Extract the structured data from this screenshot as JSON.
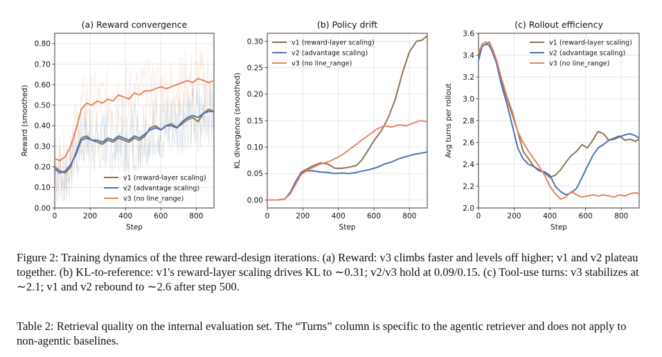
{
  "figure": {
    "caption_prefix": "Figure 2:",
    "caption_body": "Training dynamics of the three reward-design iterations. (a) Reward: v3 climbs faster and levels off higher; v1 and v2 plateau together. (b) KL-to-reference: v1's reward-layer scaling drives KL to ∼0.31; v2/v3 hold at 0.09/0.15. (c) Tool-use turns: v3 stabilizes at ∼2.1; v1 and v2 rebound to ∼2.6 after step 500."
  },
  "table_caption": {
    "prefix": "Table 2:",
    "body": "Retrieval quality on the internal evaluation set. The “Turns” column is specific to the agentic retriever and does not apply to non-agentic baselines."
  },
  "colors": {
    "v1": "#8b7355",
    "v2": "#4a72b8",
    "v3": "#e8835a"
  },
  "chart_data": [
    {
      "type": "line",
      "title": "(a) Reward convergence",
      "xlabel": "Step",
      "ylabel": "Reward (smoothed)",
      "xlim": [
        0,
        900
      ],
      "ylim": [
        0.0,
        0.85
      ],
      "xticks": [
        0,
        200,
        400,
        600,
        800
      ],
      "yticks": [
        0.0,
        0.1,
        0.2,
        0.3,
        0.4,
        0.5,
        0.6,
        0.7,
        0.8
      ],
      "ytick_labels": [
        "0.00",
        "0.10",
        "0.20",
        "0.30",
        "0.40",
        "0.50",
        "0.60",
        "0.70",
        "0.80"
      ],
      "grid": true,
      "legend": "bottom-right",
      "series": [
        {
          "name": "v1 (reward-layer scaling)",
          "key": "v1",
          "x": [
            0,
            30,
            60,
            90,
            120,
            150,
            180,
            210,
            240,
            270,
            300,
            330,
            360,
            390,
            420,
            450,
            480,
            510,
            540,
            570,
            600,
            630,
            660,
            690,
            720,
            750,
            780,
            810,
            840,
            870,
            900
          ],
          "y": [
            0.2,
            0.18,
            0.17,
            0.2,
            0.27,
            0.34,
            0.35,
            0.33,
            0.32,
            0.31,
            0.33,
            0.32,
            0.34,
            0.33,
            0.32,
            0.34,
            0.33,
            0.35,
            0.39,
            0.4,
            0.38,
            0.4,
            0.41,
            0.39,
            0.41,
            0.43,
            0.44,
            0.42,
            0.46,
            0.48,
            0.47
          ]
        },
        {
          "name": "v2 (advantage scaling)",
          "key": "v2",
          "x": [
            0,
            30,
            60,
            90,
            120,
            150,
            180,
            210,
            240,
            270,
            300,
            330,
            360,
            390,
            420,
            450,
            480,
            510,
            540,
            570,
            600,
            630,
            660,
            690,
            720,
            750,
            780,
            810,
            840,
            870,
            900
          ],
          "y": [
            0.19,
            0.17,
            0.18,
            0.21,
            0.26,
            0.33,
            0.34,
            0.33,
            0.33,
            0.32,
            0.34,
            0.33,
            0.35,
            0.34,
            0.33,
            0.35,
            0.34,
            0.36,
            0.38,
            0.39,
            0.38,
            0.4,
            0.4,
            0.39,
            0.42,
            0.44,
            0.45,
            0.44,
            0.46,
            0.47,
            0.47
          ]
        },
        {
          "name": "v3 (no line_range)",
          "key": "v3",
          "x": [
            0,
            30,
            60,
            90,
            120,
            150,
            180,
            210,
            240,
            270,
            300,
            330,
            360,
            390,
            420,
            450,
            480,
            510,
            540,
            570,
            600,
            630,
            660,
            690,
            720,
            750,
            780,
            810,
            840,
            870,
            900
          ],
          "y": [
            0.24,
            0.23,
            0.25,
            0.3,
            0.38,
            0.48,
            0.51,
            0.5,
            0.52,
            0.51,
            0.53,
            0.52,
            0.55,
            0.54,
            0.53,
            0.56,
            0.55,
            0.57,
            0.57,
            0.58,
            0.59,
            0.58,
            0.59,
            0.6,
            0.61,
            0.62,
            0.61,
            0.63,
            0.62,
            0.61,
            0.62
          ]
        }
      ]
    },
    {
      "type": "line",
      "title": "(b) Policy drift",
      "xlabel": "Step",
      "ylabel": "KL divergence (smoothed)",
      "xlim": [
        0,
        900
      ],
      "ylim": [
        -0.015,
        0.315
      ],
      "xticks": [
        0,
        200,
        400,
        600,
        800
      ],
      "yticks": [
        0.0,
        0.05,
        0.1,
        0.15,
        0.2,
        0.25,
        0.3
      ],
      "ytick_labels": [
        "0.00",
        "0.05",
        "0.10",
        "0.15",
        "0.20",
        "0.25",
        "0.30"
      ],
      "grid": true,
      "legend": "top-left",
      "series": [
        {
          "name": "v1 (reward-layer scaling)",
          "key": "v1",
          "x": [
            0,
            60,
            100,
            130,
            160,
            190,
            220,
            260,
            300,
            340,
            380,
            420,
            460,
            500,
            530,
            560,
            600,
            640,
            680,
            720,
            760,
            800,
            840,
            870,
            900
          ],
          "y": [
            0.0,
            0.0,
            0.002,
            0.015,
            0.035,
            0.052,
            0.058,
            0.065,
            0.07,
            0.068,
            0.06,
            0.06,
            0.062,
            0.065,
            0.075,
            0.09,
            0.112,
            0.13,
            0.155,
            0.19,
            0.24,
            0.28,
            0.3,
            0.302,
            0.31
          ]
        },
        {
          "name": "v2 (advantage scaling)",
          "key": "v2",
          "x": [
            0,
            60,
            100,
            130,
            160,
            190,
            220,
            260,
            300,
            340,
            380,
            420,
            460,
            500,
            540,
            580,
            620,
            660,
            700,
            740,
            780,
            820,
            860,
            900
          ],
          "y": [
            0.0,
            0.0,
            0.002,
            0.015,
            0.035,
            0.05,
            0.055,
            0.055,
            0.053,
            0.052,
            0.05,
            0.051,
            0.05,
            0.052,
            0.055,
            0.058,
            0.062,
            0.068,
            0.072,
            0.078,
            0.082,
            0.086,
            0.088,
            0.091
          ]
        },
        {
          "name": "v3 (no line_range)",
          "key": "v3",
          "x": [
            0,
            60,
            100,
            130,
            160,
            190,
            220,
            260,
            300,
            340,
            380,
            420,
            460,
            500,
            540,
            580,
            620,
            660,
            700,
            740,
            780,
            820,
            860,
            900
          ],
          "y": [
            0.0,
            0.0,
            0.002,
            0.012,
            0.03,
            0.048,
            0.055,
            0.062,
            0.068,
            0.072,
            0.078,
            0.085,
            0.095,
            0.105,
            0.115,
            0.125,
            0.135,
            0.14,
            0.138,
            0.142,
            0.14,
            0.145,
            0.15,
            0.148
          ]
        }
      ]
    },
    {
      "type": "line",
      "title": "(c) Rollout efficiency",
      "xlabel": "Step",
      "ylabel": "Avg turns per rollout",
      "xlim": [
        0,
        900
      ],
      "ylim": [
        2.0,
        3.6
      ],
      "xticks": [
        0,
        200,
        400,
        600,
        800
      ],
      "yticks": [
        2.0,
        2.2,
        2.4,
        2.6,
        2.8,
        3.0,
        3.2,
        3.4,
        3.6
      ],
      "ytick_labels": [
        "2.0",
        "2.2",
        "2.4",
        "2.6",
        "2.8",
        "3.0",
        "3.2",
        "3.4",
        "3.6"
      ],
      "grid": true,
      "legend": "top-right",
      "series": [
        {
          "name": "v1 (reward-layer scaling)",
          "key": "v1",
          "x": [
            0,
            20,
            40,
            60,
            80,
            100,
            130,
            160,
            190,
            220,
            250,
            280,
            310,
            340,
            370,
            400,
            430,
            460,
            490,
            520,
            550,
            580,
            610,
            640,
            670,
            700,
            730,
            760,
            790,
            820,
            850,
            880,
            900
          ],
          "y": [
            3.4,
            3.48,
            3.5,
            3.52,
            3.45,
            3.35,
            3.15,
            3.0,
            2.85,
            2.7,
            2.52,
            2.45,
            2.38,
            2.35,
            2.32,
            2.28,
            2.3,
            2.35,
            2.42,
            2.48,
            2.52,
            2.58,
            2.55,
            2.62,
            2.7,
            2.68,
            2.62,
            2.64,
            2.66,
            2.62,
            2.63,
            2.61,
            2.63
          ]
        },
        {
          "name": "v2 (advantage scaling)",
          "key": "v2",
          "x": [
            0,
            20,
            40,
            60,
            80,
            100,
            130,
            160,
            190,
            220,
            250,
            280,
            310,
            340,
            370,
            400,
            430,
            460,
            490,
            520,
            550,
            580,
            610,
            640,
            670,
            700,
            730,
            760,
            790,
            820,
            850,
            880,
            900
          ],
          "y": [
            3.35,
            3.48,
            3.5,
            3.49,
            3.42,
            3.33,
            3.12,
            2.95,
            2.75,
            2.55,
            2.45,
            2.4,
            2.38,
            2.34,
            2.33,
            2.3,
            2.2,
            2.15,
            2.12,
            2.14,
            2.18,
            2.28,
            2.38,
            2.48,
            2.55,
            2.58,
            2.62,
            2.63,
            2.65,
            2.67,
            2.68,
            2.66,
            2.64
          ]
        },
        {
          "name": "v3 (no line_range)",
          "key": "v3",
          "x": [
            0,
            20,
            40,
            60,
            80,
            100,
            130,
            160,
            190,
            220,
            250,
            280,
            310,
            340,
            370,
            400,
            430,
            460,
            490,
            520,
            550,
            580,
            610,
            640,
            670,
            700,
            730,
            760,
            790,
            820,
            850,
            880,
            900
          ],
          "y": [
            3.42,
            3.5,
            3.52,
            3.51,
            3.45,
            3.36,
            3.18,
            3.02,
            2.88,
            2.7,
            2.6,
            2.52,
            2.45,
            2.38,
            2.3,
            2.2,
            2.13,
            2.08,
            2.1,
            2.15,
            2.12,
            2.1,
            2.11,
            2.12,
            2.11,
            2.12,
            2.11,
            2.1,
            2.12,
            2.11,
            2.13,
            2.14,
            2.13
          ]
        }
      ]
    }
  ]
}
